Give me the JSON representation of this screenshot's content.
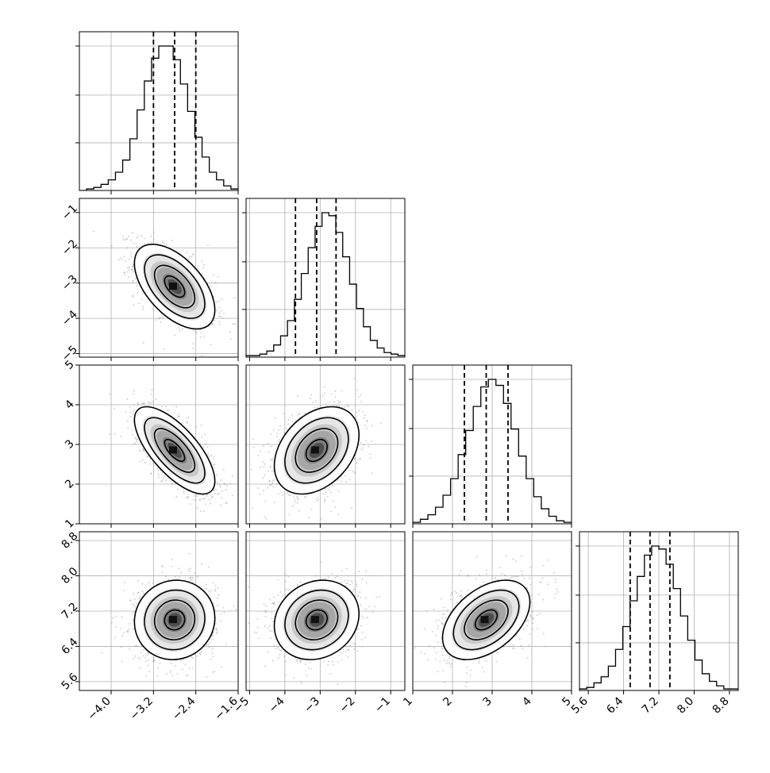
{
  "chart_data": {
    "type": "corner",
    "params": [
      {
        "ticks": [
          -4.0,
          -3.2,
          -2.4,
          -1.6
        ],
        "tick_labels": [
          "−4.0",
          "−3.2",
          "−2.4",
          "−1.6"
        ],
        "range": [
          -4.6,
          -1.6
        ]
      },
      {
        "ticks": [
          -5,
          -4,
          -3,
          -2,
          -1
        ],
        "tick_labels": [
          "−5",
          "−4",
          "−3",
          "−2",
          "−1"
        ],
        "range": [
          -5.1,
          -0.6
        ]
      },
      {
        "ticks": [
          1,
          2,
          3,
          4,
          5
        ],
        "tick_labels": [
          "1",
          "2",
          "3",
          "4",
          "5"
        ],
        "range": [
          1.0,
          5.0
        ]
      },
      {
        "ticks": [
          5.6,
          6.4,
          7.2,
          8.0,
          8.8
        ],
        "tick_labels": [
          "5.6",
          "6.4",
          "7.2",
          "8.0",
          "8.8"
        ],
        "range": [
          5.4,
          9.0
        ]
      }
    ],
    "quantiles": [
      [
        -3.2,
        -2.8,
        -2.4
      ],
      [
        -3.7,
        -3.1,
        -2.55
      ],
      [
        2.3,
        2.85,
        3.4
      ],
      [
        6.55,
        7.0,
        7.45
      ]
    ],
    "histograms": [
      [
        0,
        1,
        2,
        4,
        7,
        12,
        20,
        34,
        53,
        72,
        87,
        95,
        95,
        86,
        70,
        52,
        35,
        22,
        12,
        7,
        3,
        1
      ],
      [
        1,
        1,
        2,
        4,
        8,
        14,
        24,
        38,
        55,
        72,
        86,
        95,
        93,
        82,
        66,
        48,
        32,
        20,
        11,
        6,
        3,
        2,
        1
      ],
      [
        1,
        3,
        6,
        11,
        19,
        30,
        46,
        62,
        78,
        91,
        96,
        92,
        80,
        63,
        45,
        30,
        18,
        10,
        5,
        2,
        1
      ],
      [
        1,
        2,
        5,
        9,
        16,
        27,
        42,
        59,
        75,
        89,
        95,
        93,
        83,
        67,
        49,
        33,
        20,
        11,
        6,
        3,
        1,
        1
      ]
    ],
    "correlations": [
      [
        1,
        -0.55,
        -0.7,
        0.05
      ],
      [
        -0.55,
        1,
        0.35,
        0.15
      ],
      [
        -0.7,
        0.35,
        1,
        0.45
      ],
      [
        0.05,
        0.15,
        0.45,
        1
      ]
    ],
    "means": [
      -2.8,
      -3.1,
      2.85,
      7.0
    ],
    "stds": [
      0.38,
      0.6,
      0.55,
      0.45
    ],
    "grid": true,
    "contour_levels_sigma": [
      0.5,
      1.0,
      1.5,
      2.0
    ]
  }
}
